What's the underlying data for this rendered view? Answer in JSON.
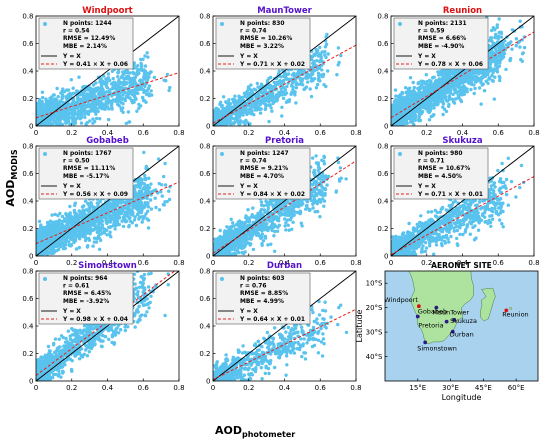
{
  "figure": {
    "ylabel_main": "AOD",
    "ylabel_sub": "MODIS",
    "xlabel_main": "AOD",
    "xlabel_sub": "photometer",
    "colors": {
      "points": "#59c3ee",
      "title": "#5512cc",
      "title_red": "#dd1111",
      "fit": "#e8201c",
      "identity": "#000000",
      "map_land": "#aee39f",
      "map_sea": "#a8d2ee"
    }
  },
  "chart_data": [
    {
      "type": "scatter",
      "title": "Windpoort",
      "title_color": "red",
      "n_label": "N points: 1244",
      "r": "r = 0.54",
      "rmse": "RMSE = 12.49%",
      "mbe": "MBE = 2.14%",
      "yx_label": "Y = X",
      "fit_label": "Y = 0.41 × X + 0.06",
      "slope": 0.41,
      "intercept": 0.06,
      "xlim": [
        0,
        0.8
      ],
      "ylim": [
        0,
        0.8
      ],
      "xticks": [
        "0",
        "0.2",
        "0.4",
        "0.6",
        "0.8"
      ],
      "yticks": [
        "0",
        "0.2",
        "0.4",
        "0.6",
        "0.8"
      ],
      "n": 1244,
      "seed": 11
    },
    {
      "type": "scatter",
      "title": "MaunTower",
      "title_color": "purple",
      "n_label": "N points: 830",
      "r": "r = 0.74",
      "rmse": "RMSE = 10.26%",
      "mbe": "MBE = 3.22%",
      "yx_label": "Y = X",
      "fit_label": "Y = 0.71 × X + 0.02",
      "slope": 0.71,
      "intercept": 0.02,
      "xlim": [
        0,
        0.8
      ],
      "ylim": [
        0,
        0.8
      ],
      "xticks": [
        "0",
        "0.2",
        "0.4",
        "0.6",
        "0.8"
      ],
      "yticks": [
        "0",
        "0.2",
        "0.4",
        "0.6",
        "0.8"
      ],
      "n": 830,
      "seed": 23
    },
    {
      "type": "scatter",
      "title": "Reunion",
      "title_color": "red",
      "n_label": "N points: 2131",
      "r": "r = 0.59",
      "rmse": "RMSE = 6.66%",
      "mbe": "MBE = -4.90%",
      "yx_label": "Y = X",
      "fit_label": "Y = 0.78 × X + 0.06",
      "slope": 0.78,
      "intercept": 0.06,
      "xlim": [
        0,
        0.8
      ],
      "ylim": [
        0,
        0.8
      ],
      "xticks": [
        "0",
        "0.2",
        "0.4",
        "0.6",
        "0.8"
      ],
      "yticks": [
        "0",
        "0.2",
        "0.4",
        "0.6",
        "0.8"
      ],
      "n": 2131,
      "seed": 37
    },
    {
      "type": "scatter",
      "title": "Gobabeb",
      "title_color": "purple",
      "n_label": "N points: 1767",
      "r": "r = 0.50",
      "rmse": "RMSE = 11.11%",
      "mbe": "MBE = -5.17%",
      "yx_label": "Y = X",
      "fit_label": "Y = 0.56 × X + 0.09",
      "slope": 0.56,
      "intercept": 0.09,
      "xlim": [
        0,
        0.8
      ],
      "ylim": [
        0,
        0.8
      ],
      "xticks": [
        "0",
        "0.2",
        "0.4",
        "0.6",
        "0.8"
      ],
      "yticks": [
        "0",
        "0.2",
        "0.4",
        "0.6",
        "0.8"
      ],
      "n": 1767,
      "seed": 41
    },
    {
      "type": "scatter",
      "title": "Pretoria",
      "title_color": "purple",
      "n_label": "N points: 1247",
      "r": "r = 0.74",
      "rmse": "RMSE = 9.21%",
      "mbe": "MBE = 4.70%",
      "yx_label": "Y = X",
      "fit_label": "Y = 0.84 × X + 0.02",
      "slope": 0.84,
      "intercept": 0.02,
      "xlim": [
        0,
        0.8
      ],
      "ylim": [
        0,
        0.8
      ],
      "xticks": [
        "0",
        "0.2",
        "0.4",
        "0.6",
        "0.8"
      ],
      "yticks": [
        "0",
        "0.2",
        "0.4",
        "0.6",
        "0.8"
      ],
      "n": 1247,
      "seed": 53
    },
    {
      "type": "scatter",
      "title": "Skukuza",
      "title_color": "purple",
      "n_label": "N points: 980",
      "r": "r = 0.71",
      "rmse": "RMSE = 10.67%",
      "mbe": "MBE = 4.50%",
      "yx_label": "Y = X",
      "fit_label": "Y = 0.71 × X + 0.01",
      "slope": 0.71,
      "intercept": 0.01,
      "xlim": [
        0,
        0.8
      ],
      "ylim": [
        0,
        0.8
      ],
      "xticks": [
        "0",
        "0.2",
        "0.4",
        "0.6",
        "0.8"
      ],
      "yticks": [
        "0",
        "0.2",
        "0.4",
        "0.6",
        "0.8"
      ],
      "n": 980,
      "seed": 67
    },
    {
      "type": "scatter",
      "title": "Simonstown",
      "title_color": "purple",
      "n_label": "N points: 964",
      "r": "r = 0.61",
      "rmse": "RMSE = 6.45%",
      "mbe": "MBE = -3.92%",
      "yx_label": "Y = X",
      "fit_label": "Y = 0.98 × X + 0.04",
      "slope": 0.98,
      "intercept": 0.04,
      "xlim": [
        0,
        0.8
      ],
      "ylim": [
        0,
        0.8
      ],
      "xticks": [
        "0",
        "0.2",
        "0.4",
        "0.6",
        "0.8"
      ],
      "yticks": [
        "0",
        "0.2",
        "0.4",
        "0.6",
        "0.8"
      ],
      "n": 964,
      "seed": 79
    },
    {
      "type": "scatter",
      "title": "Durban",
      "title_color": "purple",
      "n_label": "N points: 603",
      "r": "r = 0.76",
      "rmse": "RMSE = 8.85%",
      "mbe": "MBE = 4.99%",
      "yx_label": "Y = X",
      "fit_label": "Y = 0.64 × X + 0.01",
      "slope": 0.64,
      "intercept": 0.01,
      "xlim": [
        0,
        0.8
      ],
      "ylim": [
        0,
        0.8
      ],
      "xticks": [
        "0",
        "0.2",
        "0.4",
        "0.6",
        "0.8"
      ],
      "yticks": [
        "0",
        "0.2",
        "0.4",
        "0.6",
        "0.8"
      ],
      "n": 603,
      "seed": 97
    }
  ],
  "map": {
    "title": "AERONET SITE",
    "xlabel": "Longitude",
    "ylabel": "Latitude",
    "lon_range": [
      0,
      70
    ],
    "lat_range": [
      -50,
      -5
    ],
    "xticks": [
      {
        "lon": 15,
        "label": "15°E"
      },
      {
        "lon": 30,
        "label": "30°E"
      },
      {
        "lon": 45,
        "label": "45°E"
      },
      {
        "lon": 60,
        "label": "60°E"
      }
    ],
    "yticks": [
      {
        "lat": -10,
        "label": "10°S"
      },
      {
        "lat": -20,
        "label": "20°S"
      },
      {
        "lat": -30,
        "label": "30°S"
      },
      {
        "lat": -40,
        "label": "40°S"
      }
    ],
    "sites": [
      {
        "name": "Windpoort",
        "lon": 15.5,
        "lat": -19.4,
        "color": "red"
      },
      {
        "name": "MaunTower",
        "lon": 23.5,
        "lat": -20.0,
        "color": "purple"
      },
      {
        "name": "Gobabeb",
        "lon": 15.0,
        "lat": -23.6,
        "color": "purple"
      },
      {
        "name": "Skukuza",
        "lon": 31.6,
        "lat": -25.0,
        "color": "purple"
      },
      {
        "name": "Pretoria",
        "lon": 28.2,
        "lat": -25.7,
        "color": "purple"
      },
      {
        "name": "Durban",
        "lon": 31.0,
        "lat": -29.8,
        "color": "purple"
      },
      {
        "name": "Simonstown",
        "lon": 18.4,
        "lat": -34.2,
        "color": "purple"
      },
      {
        "name": "Reunion",
        "lon": 55.5,
        "lat": -21.1,
        "color": "red"
      }
    ]
  }
}
